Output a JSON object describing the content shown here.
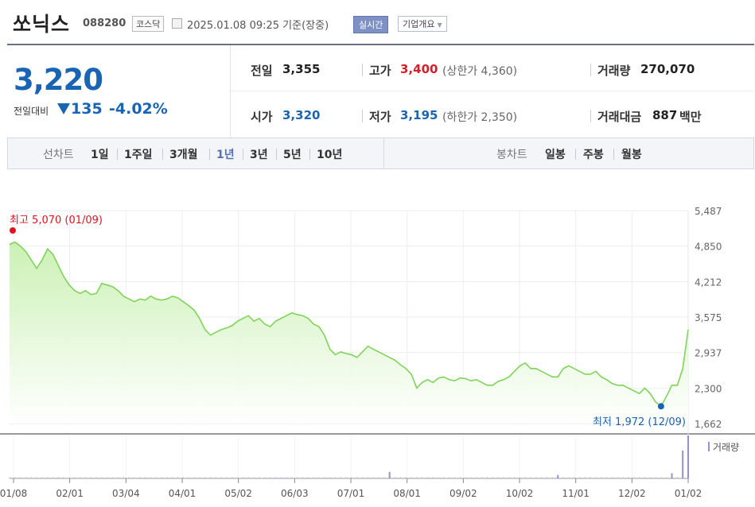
{
  "header": {
    "stock_name": "쏘닉스",
    "stock_code": "088280",
    "market": "코스닥",
    "datetime": "2025.01.08 09:25 기준(장중)",
    "realtime_button": "실시간",
    "company_button": "기업개요"
  },
  "summary": {
    "price": "3,220",
    "compare_label": "전일대비",
    "change": "135",
    "change_pct": "-4.02%",
    "prev_label": "전일",
    "prev_value": "3,355",
    "open_label": "시가",
    "open_value": "3,320",
    "high_label": "고가",
    "high_value": "3,400",
    "upper_limit": "(상한가 4,360)",
    "low_label": "저가",
    "low_value": "3,195",
    "lower_limit": "(하한가 2,350)",
    "volume_label": "거래량",
    "volume_value": "270,070",
    "amount_label": "거래대금",
    "amount_value": "887",
    "amount_unit": "백만"
  },
  "toolbar": {
    "line_chart_label": "선차트",
    "periods": [
      "1일",
      "1주일",
      "3개월",
      "1년",
      "3년",
      "5년",
      "10년"
    ],
    "selected_period": "1년",
    "candle_label": "봉차트",
    "candles": [
      "일봉",
      "주봉",
      "월봉"
    ]
  },
  "chart_data": {
    "type": "area",
    "y_ticks": [
      "5,487",
      "4,850",
      "4,212",
      "3,575",
      "2,937",
      "2,300",
      "1,662"
    ],
    "ylim": [
      1662,
      5487
    ],
    "x_ticks": [
      "01/08",
      "02/01",
      "03/04",
      "04/01",
      "05/02",
      "06/03",
      "07/01",
      "08/01",
      "09/02",
      "10/02",
      "11/01",
      "12/02",
      "01/02"
    ],
    "max_label": "최고 5,070 (01/09)",
    "min_label": "최저 1,972 (12/09)",
    "volume_label": "거래량",
    "colors": {
      "line": "#7fd35a",
      "fill_top": "#c8f0b0",
      "max_marker": "#e0141e",
      "min_marker": "#1a64b4",
      "volume": "#9a8fd0"
    },
    "series": [
      {
        "x_index": [
          0,
          1,
          2,
          3,
          4,
          5,
          6,
          7,
          8,
          9,
          10,
          11,
          12,
          13,
          14,
          15,
          16,
          17,
          18,
          19,
          20,
          21,
          22,
          23,
          24,
          25,
          26,
          27,
          28,
          29,
          30,
          31,
          32,
          33,
          34,
          35,
          36,
          37,
          38,
          39,
          40,
          41,
          42,
          43,
          44,
          45,
          46,
          47,
          48,
          49,
          50,
          51,
          52,
          53,
          54,
          55,
          56,
          57,
          58,
          59,
          60,
          61,
          62,
          63,
          64,
          65,
          66,
          67,
          68,
          69,
          70,
          71,
          72,
          73,
          74,
          75,
          76,
          77,
          78,
          79,
          80,
          81,
          82,
          83,
          84,
          85,
          86,
          87,
          88,
          89,
          90,
          91,
          92,
          93,
          94,
          95,
          96,
          97,
          98,
          99,
          100,
          101,
          102,
          103,
          104,
          105,
          106,
          107,
          108,
          109,
          110,
          111,
          112,
          113,
          114,
          115,
          116,
          117,
          118,
          119,
          120,
          121,
          122,
          123,
          124,
          125
        ],
        "values": [
          4880,
          4920,
          4850,
          4750,
          4600,
          4450,
          4600,
          4800,
          4700,
          4500,
          4300,
          4150,
          4050,
          4000,
          4050,
          3980,
          4000,
          4180,
          4150,
          4120,
          4050,
          3950,
          3900,
          3850,
          3900,
          3880,
          3950,
          3900,
          3880,
          3900,
          3950,
          3920,
          3850,
          3780,
          3700,
          3550,
          3350,
          3250,
          3300,
          3350,
          3380,
          3420,
          3500,
          3550,
          3600,
          3500,
          3550,
          3450,
          3400,
          3500,
          3550,
          3600,
          3650,
          3620,
          3600,
          3550,
          3450,
          3400,
          3250,
          3000,
          2900,
          2950,
          2920,
          2900,
          2850,
          2950,
          3050,
          3000,
          2950,
          2900,
          2850,
          2800,
          2720,
          2650,
          2550,
          2300,
          2400,
          2450,
          2400,
          2480,
          2500,
          2450,
          2430,
          2480,
          2470,
          2430,
          2450,
          2400,
          2350,
          2350,
          2420,
          2450,
          2500,
          2600,
          2700,
          2750,
          2650,
          2650,
          2600,
          2550,
          2500,
          2500,
          2650,
          2700,
          2650,
          2600,
          2550,
          2550,
          2600,
          2500,
          2450,
          2380,
          2350,
          2350,
          2300,
          2250,
          2200,
          2300,
          2200,
          2050,
          1972,
          2150,
          2350,
          2350,
          2650,
          3350
        ]
      }
    ],
    "volume_spikes": [
      {
        "x_index": 70,
        "value": 0.15
      },
      {
        "x_index": 101,
        "value": 0.08
      },
      {
        "x_index": 122,
        "value": 0.12
      },
      {
        "x_index": 124,
        "value": 0.65
      },
      {
        "x_index": 125,
        "value": 1.0
      }
    ]
  }
}
